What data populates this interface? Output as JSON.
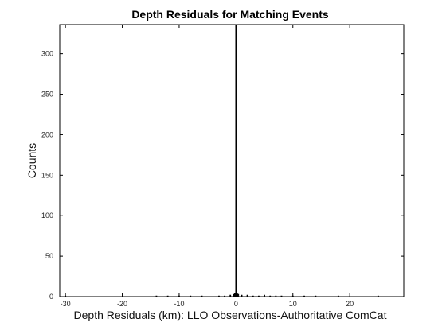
{
  "chart_data": {
    "type": "bar",
    "title": "Depth Residuals for Matching Events",
    "xlabel": "Depth Residuals (km): LLO Observations-Authoritative ComCat",
    "ylabel": "Counts",
    "xlim": [
      -31,
      29.5
    ],
    "ylim": [
      0,
      336
    ],
    "xticks": [
      -30,
      -20,
      -10,
      0,
      10,
      20
    ],
    "yticks": [
      0,
      50,
      100,
      150,
      200,
      250,
      300
    ],
    "grid": false,
    "bin_width": 0.2,
    "bins": [
      {
        "x": -30.0,
        "count": 1
      },
      {
        "x": -14.0,
        "count": 1
      },
      {
        "x": -12.0,
        "count": 1
      },
      {
        "x": -10.0,
        "count": 1
      },
      {
        "x": -8.0,
        "count": 1
      },
      {
        "x": -6.0,
        "count": 1
      },
      {
        "x": -3.0,
        "count": 1
      },
      {
        "x": -2.0,
        "count": 1
      },
      {
        "x": -1.0,
        "count": 2
      },
      {
        "x": -0.4,
        "count": 3
      },
      {
        "x": -0.2,
        "count": 4
      },
      {
        "x": 0.0,
        "count": 336
      },
      {
        "x": 0.2,
        "count": 4
      },
      {
        "x": 0.4,
        "count": 3
      },
      {
        "x": 1.0,
        "count": 2
      },
      {
        "x": 2.0,
        "count": 2
      },
      {
        "x": 3.0,
        "count": 1
      },
      {
        "x": 4.0,
        "count": 1
      },
      {
        "x": 5.0,
        "count": 2
      },
      {
        "x": 6.0,
        "count": 1
      },
      {
        "x": 7.0,
        "count": 1
      },
      {
        "x": 8.0,
        "count": 1
      },
      {
        "x": 10.0,
        "count": 1
      },
      {
        "x": 12.0,
        "count": 1
      },
      {
        "x": 14.0,
        "count": 1
      },
      {
        "x": 18.0,
        "count": 1
      },
      {
        "x": 25.0,
        "count": 1
      }
    ]
  }
}
